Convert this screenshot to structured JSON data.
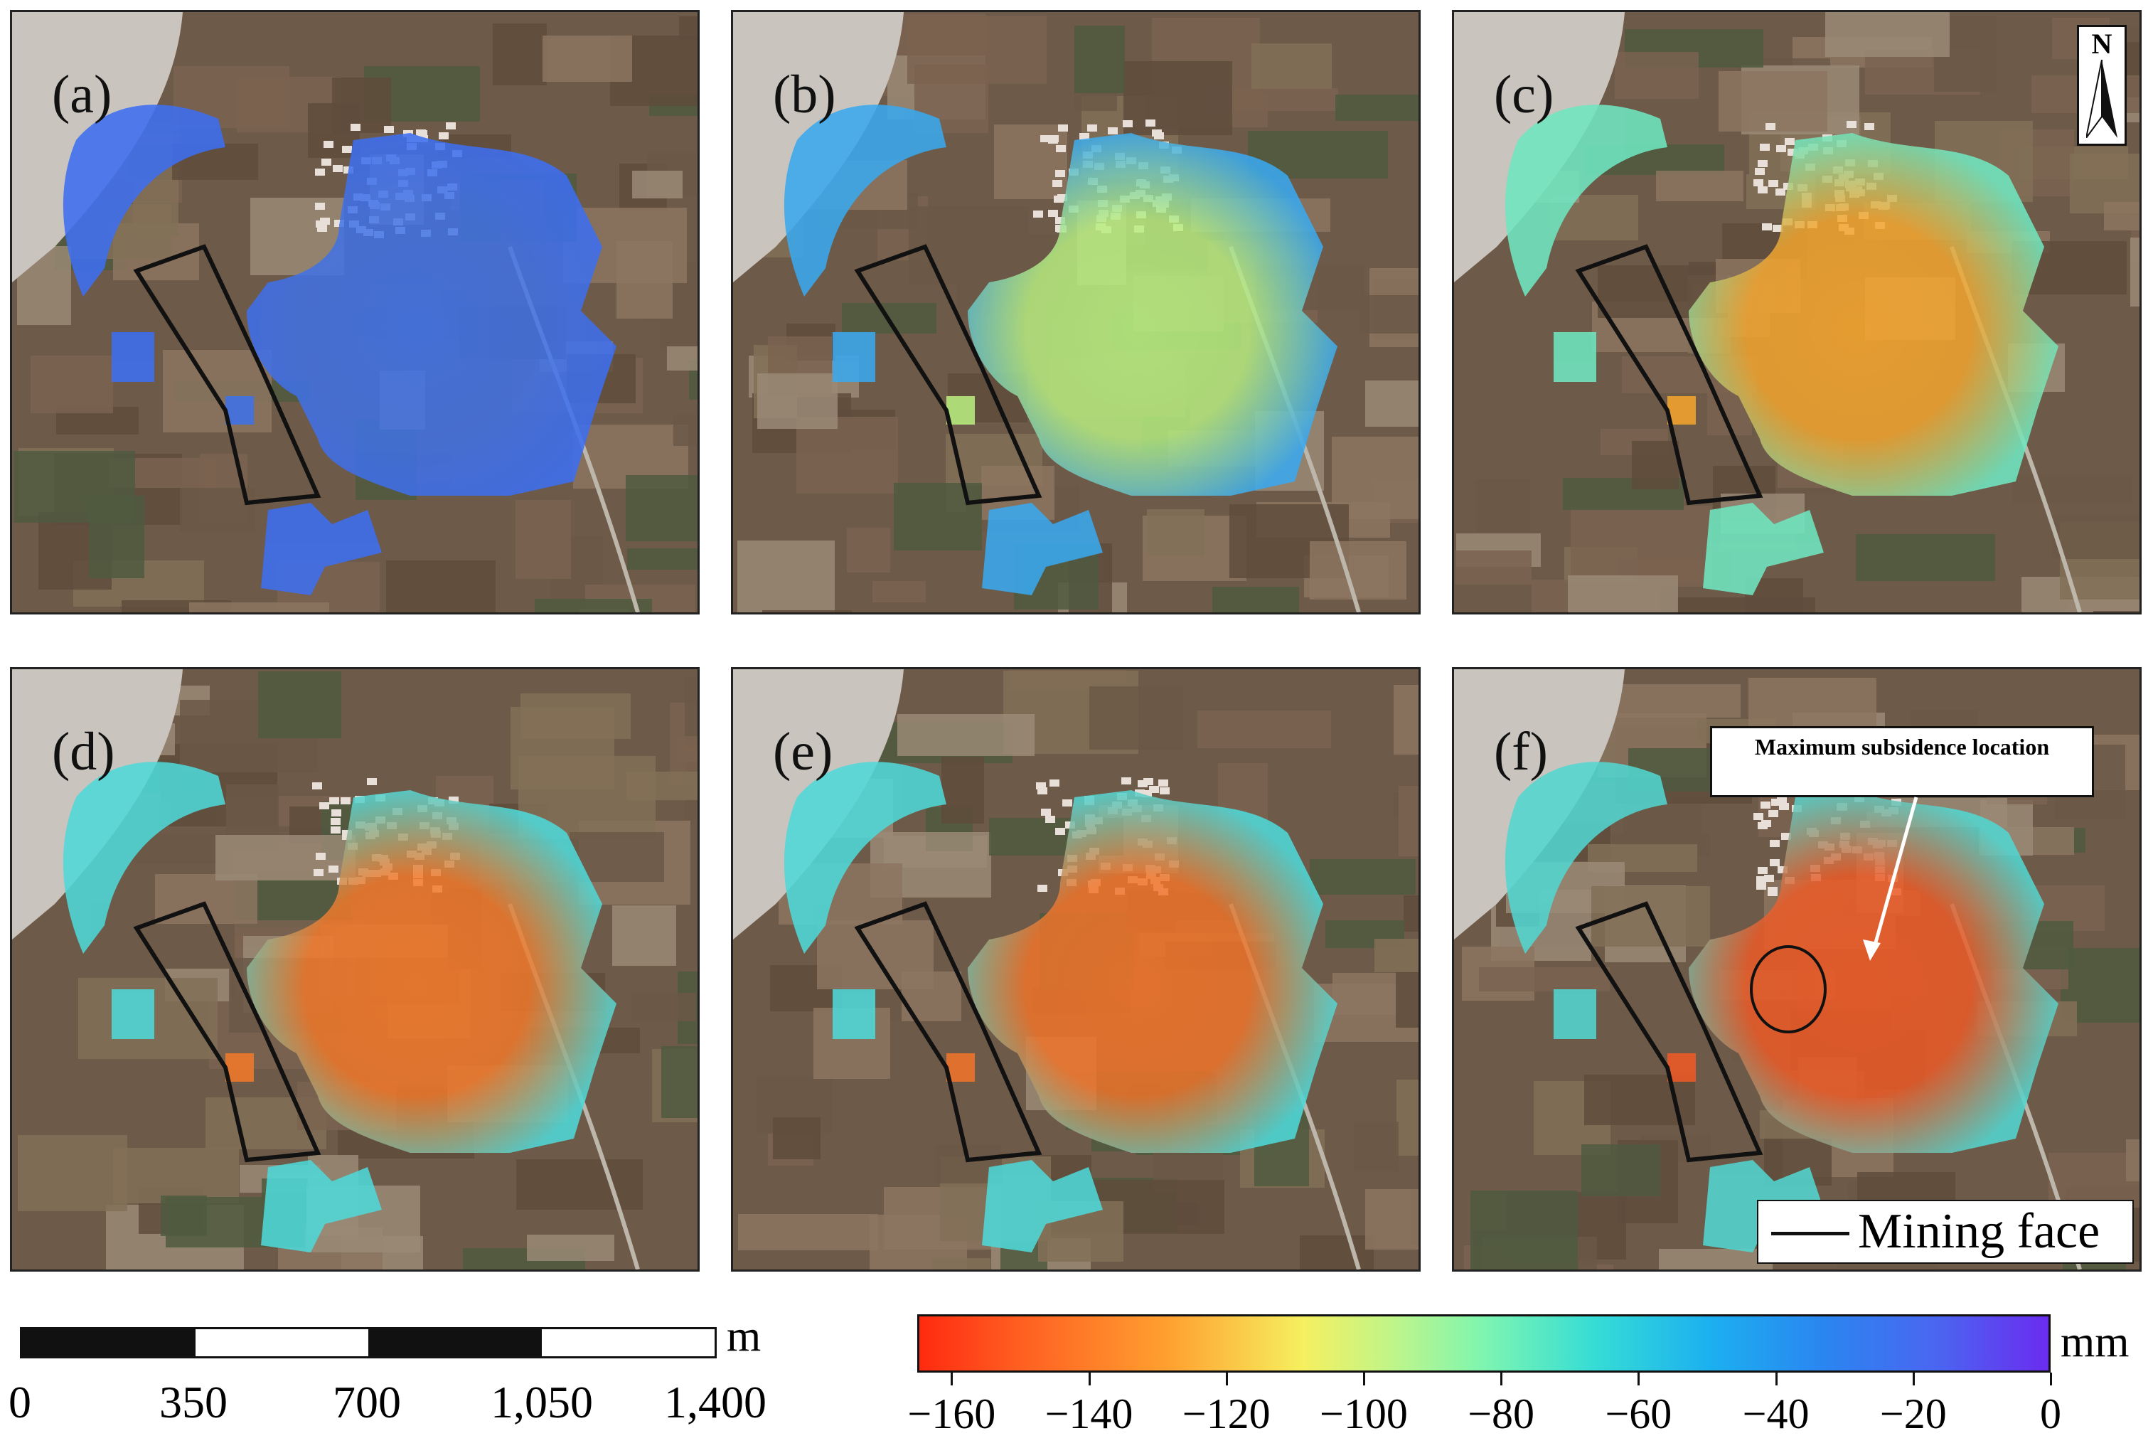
{
  "panels": [
    {
      "label": "(a)"
    },
    {
      "label": "(b)"
    },
    {
      "label": "(c)"
    },
    {
      "label": "(d)"
    },
    {
      "label": "(e)"
    },
    {
      "label": "(f)"
    }
  ],
  "north_arrow": {
    "label": "N"
  },
  "callout": {
    "text": "Maximum subsidence location"
  },
  "legend": {
    "label": "Mining face"
  },
  "scale_bar": {
    "unit": "m",
    "ticks": [
      "0",
      "350",
      "700",
      "1,050",
      "1,400"
    ]
  },
  "colorbar": {
    "unit": "mm",
    "min": -165,
    "max": 0,
    "ticks": [
      "−160",
      "−140",
      "−120",
      "−100",
      "−80",
      "−60",
      "−40",
      "−20",
      "0"
    ],
    "tick_values": [
      -160,
      -140,
      -120,
      -100,
      -80,
      -60,
      -40,
      -20,
      0
    ],
    "colors": [
      "#ff2a10",
      "#ffa030",
      "#f5f060",
      "#7ef5b0",
      "#1cb0f0",
      "#6a2cf0"
    ]
  },
  "subsidence_stage_colors": [
    {
      "panel": "(a)",
      "core": "#3f72e8",
      "edge": "#3d6ef0"
    },
    {
      "panel": "(b)",
      "core": "#b8ee80",
      "edge": "#3aa8ee"
    },
    {
      "panel": "(c)",
      "core": "#f4a52e",
      "edge": "#6fe6c0"
    },
    {
      "panel": "(d)",
      "core": "#f2792a",
      "edge": "#4ed8d8"
    },
    {
      "panel": "(e)",
      "core": "#f0742a",
      "edge": "#4ed8d8"
    },
    {
      "panel": "(f)",
      "core": "#ee5a26",
      "edge": "#52d6d0"
    }
  ]
}
